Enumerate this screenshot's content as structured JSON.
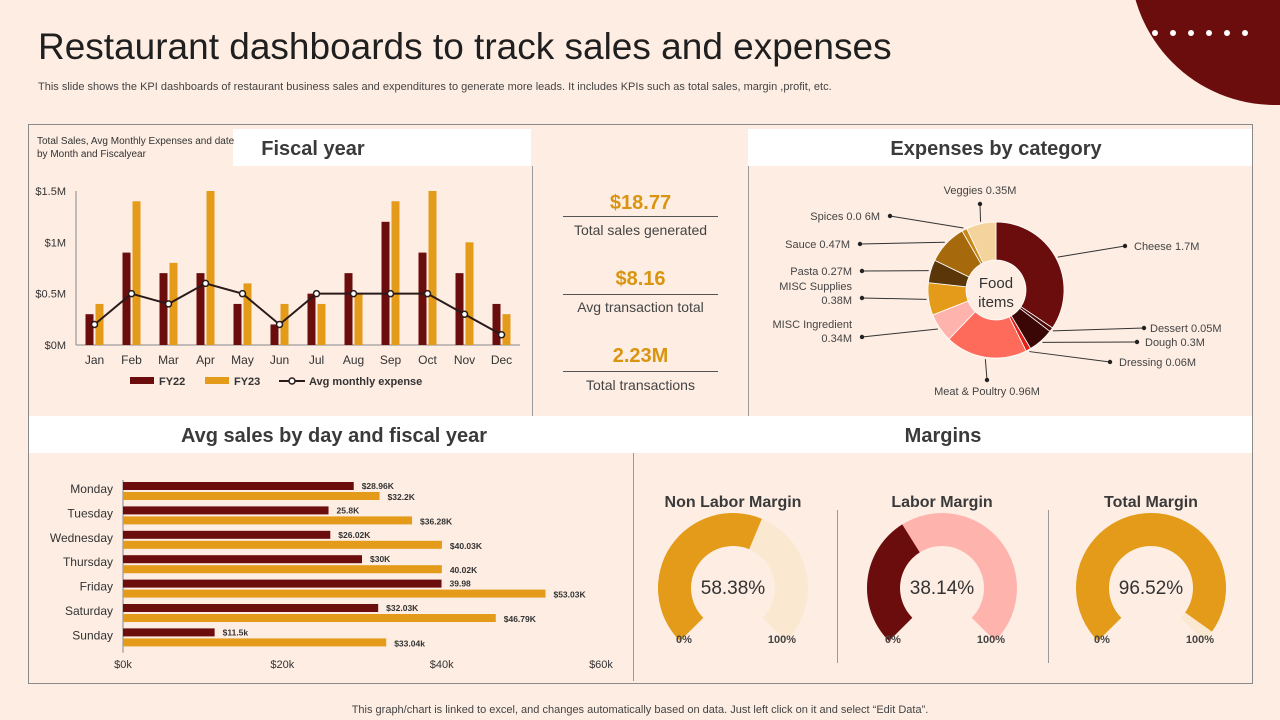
{
  "page": {
    "title": "Restaurant dashboards to track sales and expenses",
    "subtitle": "This slide shows the KPI dashboards of restaurant business sales and expenditures to generate more leads. It includes KPIs such as total sales, margin ,profit, etc.",
    "footer": "This graph/chart is linked to excel,  and changes automatically based on data. Just left click on it and select “Edit Data”."
  },
  "headers": {
    "fiscal": "Fiscal year",
    "expenses": "Expenses by category",
    "avg_sales": "Avg sales by day and fiscal year",
    "margins": "Margins",
    "fiscal_note": "Total Sales, Avg Monthly Expenses and date by Month  and Fiscalyear"
  },
  "kpis": [
    {
      "value": "$18.77",
      "label": "Total sales  generated"
    },
    {
      "value": "$8.16",
      "label": "Avg transaction total"
    },
    {
      "value": "2.23M",
      "label": "Total transactions"
    }
  ],
  "colors": {
    "fy22": "#6b0d0d",
    "fy23": "#e39b19",
    "line": "#2a1a1a",
    "pink": "#ffb3ad",
    "coral": "#ff6b5b",
    "cream": "#fbe8d0"
  },
  "chart_data": [
    {
      "type": "bar",
      "title": "Total Sales, Avg Monthly Expenses and date by Month  and Fiscalyear",
      "categories": [
        "Jan",
        "Feb",
        "Mar",
        "Apr",
        "May",
        "Jun",
        "Jul",
        "Aug",
        "Sep",
        "Oct",
        "Nov",
        "Dec"
      ],
      "series": [
        {
          "name": "FY22",
          "values": [
            0.3,
            0.9,
            0.7,
            0.7,
            0.4,
            0.2,
            0.5,
            0.7,
            1.2,
            0.9,
            0.7,
            0.4
          ]
        },
        {
          "name": "FY23",
          "values": [
            0.4,
            1.4,
            0.8,
            1.5,
            0.6,
            0.4,
            0.4,
            0.5,
            1.4,
            1.5,
            1.0,
            0.3
          ]
        },
        {
          "name": "Avg monthly expense",
          "type": "line",
          "values": [
            0.2,
            0.5,
            0.4,
            0.6,
            0.5,
            0.2,
            0.5,
            0.5,
            0.5,
            0.5,
            0.3,
            0.1
          ]
        }
      ],
      "yticks": [
        "$0M",
        "$0.5M",
        "$1M",
        "$1.5M"
      ],
      "ylim": [
        0,
        1.5
      ],
      "legend": [
        "FY22",
        "FY23",
        "Avg monthly expense"
      ]
    },
    {
      "type": "pie",
      "title": "Expenses by category",
      "center_label": [
        "Food",
        "items"
      ],
      "slices": [
        {
          "name": "Cheese",
          "value": 1.7,
          "label": "Cheese 1.7M",
          "color": "#6b0d0d"
        },
        {
          "name": "Dessert",
          "value": 0.05,
          "label": "Dessert 0.05M",
          "color": "#4a0808"
        },
        {
          "name": "Dough",
          "value": 0.3,
          "label": "Dough 0.3M",
          "color": "#3b0606"
        },
        {
          "name": "Dressing",
          "value": 0.06,
          "label": "Dressing 0.06M",
          "color": "#e0201a"
        },
        {
          "name": "Meat & Poultry",
          "value": 0.96,
          "label": "Meat & Poultry 0.96M",
          "color": "#ff6b5b"
        },
        {
          "name": "MISC Ingredient",
          "value": 0.34,
          "label": "MISC Ingredient 0.34M",
          "color": "#ffb3ad"
        },
        {
          "name": "MISC Supplies",
          "value": 0.38,
          "label": "MISC Supplies 0.38M",
          "color": "#e39b19"
        },
        {
          "name": "Pasta",
          "value": 0.27,
          "label": "Pasta 0.27M",
          "color": "#5a3608"
        },
        {
          "name": "Sauce",
          "value": 0.47,
          "label": "Sauce 0.47M",
          "color": "#a66a0c"
        },
        {
          "name": "Spices",
          "value": 0.06,
          "label": "Spices 0.0 6M",
          "color": "#c78a1a"
        },
        {
          "name": "Veggies",
          "value": 0.35,
          "label": "Veggies 0.35M",
          "color": "#f4d39c"
        }
      ]
    },
    {
      "type": "bar",
      "orientation": "horizontal",
      "title": "Avg sales by day and fiscal year",
      "categories": [
        "Monday",
        "Tuesday",
        "Wednesday",
        "Thursday",
        "Friday",
        "Saturday",
        "Sunday"
      ],
      "series": [
        {
          "name": "FY22",
          "values": [
            28.96,
            25.8,
            26.02,
            30,
            39.98,
            32.03,
            11.5
          ],
          "labels": [
            "$28.96K",
            "25.8K",
            "$26.02K",
            "$30K",
            "39.98",
            "$32.03K",
            "$11.5k"
          ]
        },
        {
          "name": "FY23",
          "values": [
            32.2,
            36.28,
            40.03,
            40.02,
            53.03,
            46.79,
            33.04
          ],
          "labels": [
            "$32.2K",
            "$36.28K",
            "$40.03K",
            "40.02K",
            "$53.03K",
            "$46.79K",
            "$33.04k"
          ]
        }
      ],
      "xticks": [
        "$0k",
        "$20k",
        "$40k",
        "$60k"
      ],
      "xlim": [
        0,
        60
      ]
    },
    {
      "type": "gauge",
      "gauges": [
        {
          "title": "Non Labor Margin",
          "value": 58.38,
          "display": "58.38%",
          "min_label": "0%",
          "max_label": "100%",
          "fill": "#e39b19",
          "track": "#fbe8d0"
        },
        {
          "title": "Labor Margin",
          "value": 38.14,
          "display": "38.14%",
          "min_label": "0%",
          "max_label": "100%",
          "fill": "#6b0d0d",
          "track": "#ffb3ad"
        },
        {
          "title": "Total Margin",
          "value": 96.52,
          "display": "96.52%",
          "min_label": "0%",
          "max_label": "100%",
          "fill": "#e39b19",
          "track": "#fbe8d0"
        }
      ]
    }
  ]
}
